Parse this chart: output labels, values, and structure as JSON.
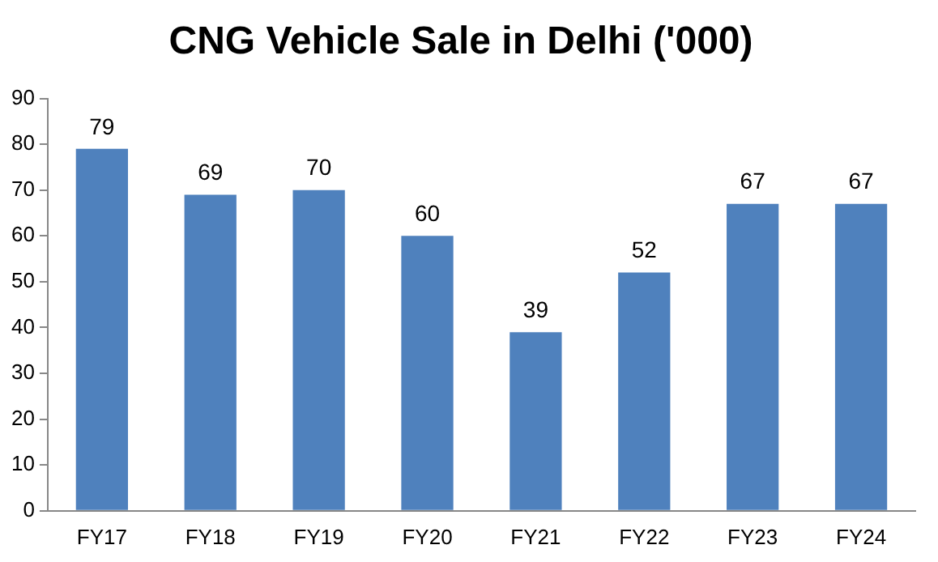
{
  "chart_data": {
    "type": "bar",
    "title": "CNG Vehicle Sale in Delhi ('000)",
    "categories": [
      "FY17",
      "FY18",
      "FY19",
      "FY20",
      "FY21",
      "FY22",
      "FY23",
      "FY24"
    ],
    "values": [
      79,
      69,
      70,
      60,
      39,
      52,
      67,
      67
    ],
    "color": "#4f81bd",
    "ylim": [
      0,
      90
    ],
    "yticks": [
      0,
      10,
      20,
      30,
      40,
      50,
      60,
      70,
      80,
      90
    ],
    "data_labels": true,
    "grid": false,
    "legend": false
  }
}
